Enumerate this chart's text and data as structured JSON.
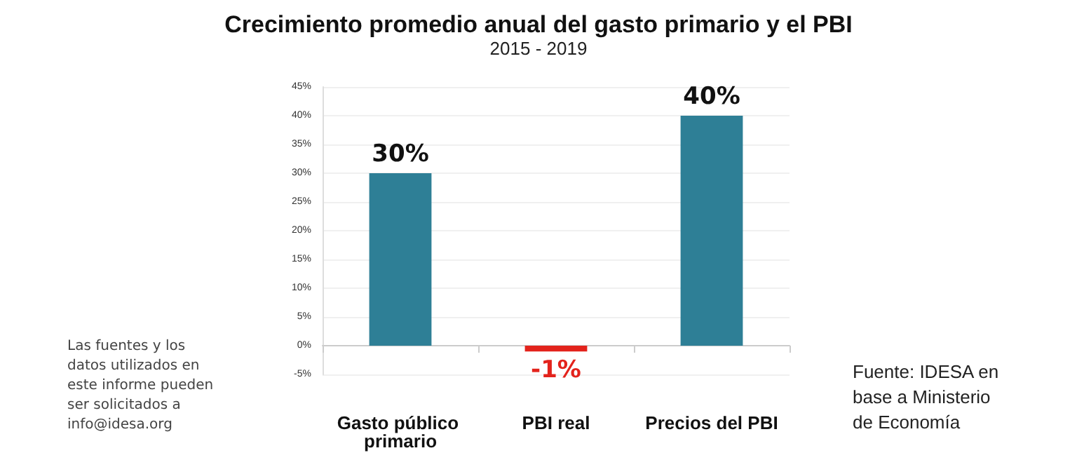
{
  "chart_data": {
    "type": "bar",
    "title": "Crecimiento promedio anual del gasto primario y el PBI",
    "subtitle": "2015 - 2019",
    "categories": [
      "Gasto público primario",
      "PBI real",
      "Precios del PBI"
    ],
    "values": [
      30,
      -1,
      40
    ],
    "colors": [
      "#2e7f96",
      "#e3231c",
      "#2e7f96"
    ],
    "value_labels": [
      "30%",
      "-1%",
      "40%"
    ],
    "ylim": [
      -5,
      45
    ],
    "yticks": [
      {
        "value": -5,
        "label": "-5%"
      },
      {
        "value": 0,
        "label": "0%"
      },
      {
        "value": 5,
        "label": "5%"
      },
      {
        "value": 10,
        "label": "10%"
      },
      {
        "value": 15,
        "label": "15%"
      },
      {
        "value": 20,
        "label": "20%"
      },
      {
        "value": 25,
        "label": "25%"
      },
      {
        "value": 30,
        "label": "30%"
      },
      {
        "value": 35,
        "label": "35%"
      },
      {
        "value": 40,
        "label": "40%"
      },
      {
        "value": 45,
        "label": "45%"
      }
    ],
    "grid": "y",
    "annotations": [
      "Las fuentes y los datos utilizados en este informe pueden ser solicitados a info@idesa.org",
      "Fuente: IDESA en base a Ministerio de Economía"
    ]
  }
}
